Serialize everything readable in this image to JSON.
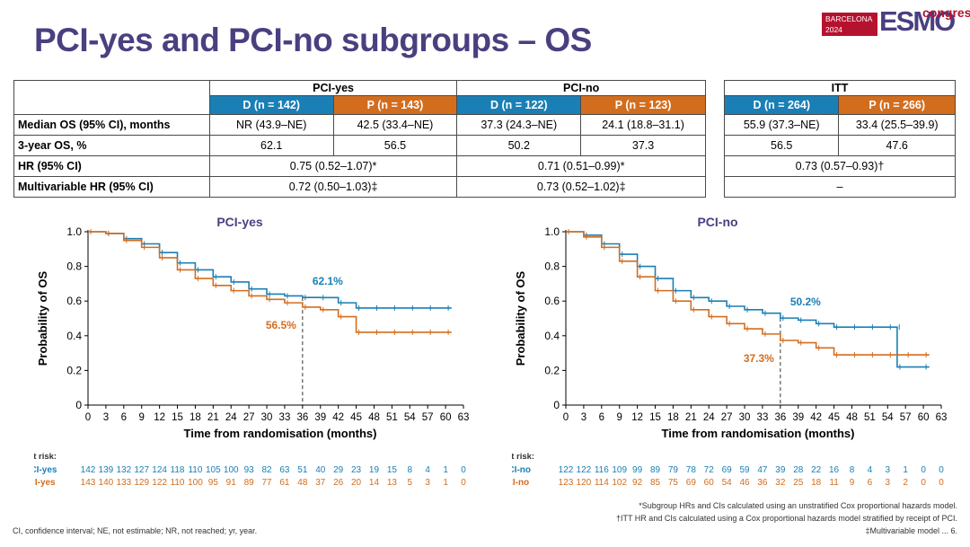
{
  "header": {
    "title": "PCI-yes and PCI-no subgroups – OS",
    "logo": {
      "city_year": [
        "BARCELONA",
        "2024"
      ],
      "brand": "ESMO",
      "suffix": "congres"
    }
  },
  "table": {
    "groups": [
      "PCI-yes",
      "PCI-no"
    ],
    "arms": [
      "D (n = 142)",
      "P (n = 143)",
      "D (n = 122)",
      "P (n = 123)"
    ],
    "rows": [
      {
        "label": "Median OS (95% CI), months",
        "cells": [
          "NR (43.9–NE)",
          "42.5 (33.4–NE)",
          "37.3 (24.3–NE)",
          "24.1 (18.8–31.1)"
        ]
      },
      {
        "label": "3-year OS, %",
        "cells": [
          "62.1",
          "56.5",
          "50.2",
          "37.3"
        ]
      },
      {
        "label": "HR (95% CI)",
        "merged": [
          "0.75 (0.52–1.07)*",
          "0.71 (0.51–0.99)*"
        ]
      },
      {
        "label": "Multivariable HR (95% CI)",
        "merged": [
          "0.72 (0.50–1.03)‡",
          "0.73 (0.52–1.02)‡"
        ]
      }
    ],
    "itt": {
      "group": "ITT",
      "arms": [
        "D (n = 264)",
        "P (n = 266)"
      ],
      "median": [
        "55.9 (37.3–NE)",
        "33.4 (25.5–39.9)"
      ],
      "threeyr": [
        "56.5",
        "47.6"
      ],
      "hr": "0.73 (0.57–0.93)†",
      "mvhr": "–"
    }
  },
  "colors": {
    "d": "#1a7fb5",
    "p": "#d36d1e",
    "title": "#4b3f80"
  },
  "chart_data": [
    {
      "type": "line",
      "title": "PCI-yes",
      "xlabel": "Time from randomisation (months)",
      "ylabel": "Probability of OS",
      "xlim": [
        0,
        63
      ],
      "ylim": [
        0,
        1.0
      ],
      "xticks": [
        0,
        3,
        6,
        9,
        12,
        15,
        18,
        21,
        24,
        27,
        30,
        33,
        36,
        39,
        42,
        45,
        48,
        51,
        54,
        57,
        60,
        63
      ],
      "yticks": [
        0,
        0.2,
        0.4,
        0.6,
        0.8,
        1.0
      ],
      "reference_x": 36,
      "annotations": [
        {
          "text": "62.1%",
          "series": "D",
          "x": 36,
          "y": 0.621
        },
        {
          "text": "56.5%",
          "series": "P",
          "x": 36,
          "y": 0.565
        }
      ],
      "series": [
        {
          "name": "D, PCI-yes",
          "color": "#1a7fb5",
          "x": [
            0,
            3,
            6,
            9,
            12,
            15,
            18,
            21,
            24,
            27,
            30,
            33,
            36,
            39,
            42,
            45,
            48,
            51,
            54,
            57,
            60
          ],
          "y": [
            1.0,
            0.99,
            0.96,
            0.93,
            0.88,
            0.82,
            0.78,
            0.74,
            0.71,
            0.67,
            0.64,
            0.63,
            0.621,
            0.62,
            0.59,
            0.56,
            0.56,
            0.56,
            0.56,
            0.56,
            0.56
          ]
        },
        {
          "name": "P, PCI-yes",
          "color": "#d36d1e",
          "x": [
            0,
            3,
            6,
            9,
            12,
            15,
            18,
            21,
            24,
            27,
            30,
            33,
            36,
            39,
            42,
            45,
            48,
            51,
            54,
            57,
            60
          ],
          "y": [
            1.0,
            0.99,
            0.95,
            0.91,
            0.85,
            0.78,
            0.73,
            0.69,
            0.66,
            0.63,
            0.61,
            0.59,
            0.565,
            0.55,
            0.51,
            0.42,
            0.42,
            0.42,
            0.42,
            0.42,
            0.42
          ]
        }
      ],
      "at_risk": {
        "header": "No. at risk:",
        "times": [
          0,
          3,
          6,
          9,
          12,
          15,
          18,
          21,
          24,
          27,
          30,
          33,
          36,
          39,
          42,
          45,
          48,
          51,
          54,
          57,
          60,
          63
        ],
        "rows": [
          {
            "label": "D, PCI-yes",
            "values": [
              142,
              139,
              132,
              127,
              124,
              118,
              110,
              105,
              100,
              93,
              82,
              63,
              51,
              40,
              29,
              23,
              19,
              15,
              8,
              4,
              1,
              0
            ]
          },
          {
            "label": "P, PCI-yes",
            "values": [
              143,
              140,
              133,
              129,
              122,
              110,
              100,
              95,
              91,
              89,
              77,
              61,
              48,
              37,
              26,
              20,
              14,
              13,
              5,
              3,
              1,
              0
            ]
          }
        ]
      }
    },
    {
      "type": "line",
      "title": "PCI-no",
      "xlabel": "Time from randomisation (months)",
      "ylabel": "Probability of OS",
      "xlim": [
        0,
        63
      ],
      "ylim": [
        0,
        1.0
      ],
      "xticks": [
        0,
        3,
        6,
        9,
        12,
        15,
        18,
        21,
        24,
        27,
        30,
        33,
        36,
        39,
        42,
        45,
        48,
        51,
        54,
        57,
        60,
        63
      ],
      "yticks": [
        0,
        0.2,
        0.4,
        0.6,
        0.8,
        1.0
      ],
      "reference_x": 36,
      "annotations": [
        {
          "text": "50.2%",
          "series": "D",
          "x": 36,
          "y": 0.502
        },
        {
          "text": "37.3%",
          "series": "P",
          "x": 36,
          "y": 0.373
        }
      ],
      "series": [
        {
          "name": "D, PCI-no",
          "color": "#1a7fb5",
          "x": [
            0,
            3,
            6,
            9,
            12,
            15,
            18,
            21,
            24,
            27,
            30,
            33,
            36,
            39,
            42,
            45,
            48,
            51,
            54,
            55.5,
            55.6,
            60
          ],
          "y": [
            1.0,
            0.98,
            0.93,
            0.87,
            0.8,
            0.73,
            0.66,
            0.62,
            0.6,
            0.57,
            0.55,
            0.53,
            0.502,
            0.49,
            0.47,
            0.45,
            0.45,
            0.45,
            0.45,
            0.45,
            0.22,
            0.22
          ]
        },
        {
          "name": "P, PCI-no",
          "color": "#d36d1e",
          "x": [
            0,
            3,
            6,
            9,
            12,
            15,
            18,
            21,
            24,
            27,
            30,
            33,
            36,
            39,
            42,
            45,
            48,
            51,
            54,
            57,
            60
          ],
          "y": [
            1.0,
            0.97,
            0.91,
            0.83,
            0.74,
            0.66,
            0.6,
            0.55,
            0.51,
            0.47,
            0.44,
            0.41,
            0.373,
            0.36,
            0.33,
            0.29,
            0.29,
            0.29,
            0.29,
            0.29,
            0.29
          ]
        }
      ],
      "at_risk": {
        "header": "No. at risk:",
        "times": [
          0,
          3,
          6,
          9,
          12,
          15,
          18,
          21,
          24,
          27,
          30,
          33,
          36,
          39,
          42,
          45,
          48,
          51,
          54,
          57,
          60,
          63
        ],
        "rows": [
          {
            "label": "D, PCI-no",
            "values": [
              122,
              122,
              116,
              109,
              99,
              89,
              79,
              78,
              72,
              69,
              59,
              47,
              39,
              28,
              22,
              16,
              8,
              4,
              3,
              1,
              0,
              0
            ]
          },
          {
            "label": "P, PCI-no",
            "values": [
              123,
              120,
              114,
              102,
              92,
              85,
              75,
              69,
              60,
              54,
              46,
              36,
              32,
              25,
              18,
              11,
              9,
              6,
              3,
              2,
              0,
              0
            ]
          }
        ]
      }
    }
  ],
  "footnotes": {
    "left": "CI, confidence interval; NE, not estimable; NR, not reached; yr, year.",
    "right": [
      "*Subgroup HRs and CIs calculated using an unstratified Cox proportional hazards model.",
      "†ITT HR and CIs calculated using a Cox proportional hazards model stratified by receipt of PCI.",
      "‡Multivariable model ... 6."
    ]
  }
}
